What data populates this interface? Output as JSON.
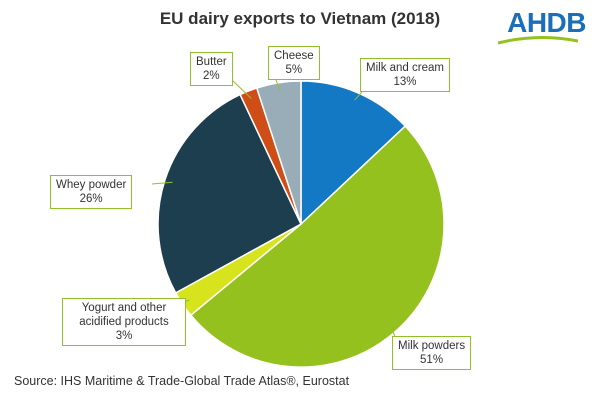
{
  "title": "EU dairy exports to Vietnam (2018)",
  "logo": {
    "text": "AHDB",
    "color": "#1a6fb8"
  },
  "source": "Source: IHS Maritime & Trade-Global Trade Atlas®, Eurostat",
  "chart_data": {
    "type": "pie",
    "title": "EU dairy exports to Vietnam (2018)",
    "start": "12 o'clock",
    "direction": "clockwise",
    "slices": [
      {
        "label": "Milk and cream",
        "pct_label": "13%",
        "value": 13,
        "color": "#1379c4"
      },
      {
        "label": "Milk powders",
        "pct_label": "51%",
        "value": 51,
        "color": "#95c11f"
      },
      {
        "label": "Yogurt and other acidified products",
        "pct_label": "3%",
        "value": 3,
        "color": "#d7e31c"
      },
      {
        "label": "Whey powder",
        "pct_label": "26%",
        "value": 26,
        "color": "#1d3e4e"
      },
      {
        "label": "Butter",
        "pct_label": "2%",
        "value": 2,
        "color": "#cf4d16"
      },
      {
        "label": "Cheese",
        "pct_label": "5%",
        "value": 5,
        "color": "#98adb8"
      }
    ]
  }
}
